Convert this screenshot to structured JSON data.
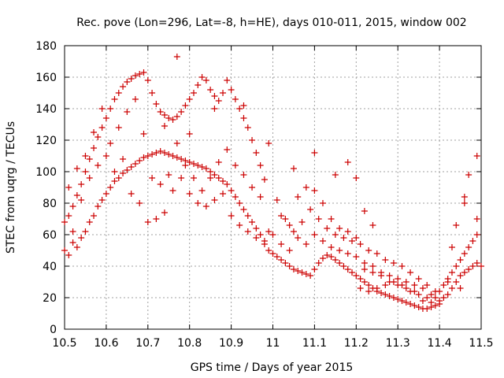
{
  "chart_data": {
    "type": "scatter",
    "title": "Rec. pove (Lon=296, Lat=-8, h=HE), days 010-011, 2015, window 002",
    "xlabel": "GPS time / Days of year 2015",
    "ylabel": "STEC from uqrg / TECUs",
    "xlim": [
      10.5,
      11.5
    ],
    "ylim": [
      0,
      180
    ],
    "xticks": [
      "10.5",
      "10.6",
      "10.7",
      "10.8",
      "10.9",
      "11",
      "11.1",
      "11.2",
      "11.3",
      "11.4",
      "11.5"
    ],
    "yticks": [
      "0",
      "20",
      "40",
      "60",
      "80",
      "100",
      "120",
      "140",
      "160",
      "180"
    ],
    "grid": true,
    "marker": "+",
    "color": "#cc0000",
    "series": [
      {
        "points": [
          [
            10.5,
            50
          ],
          [
            10.51,
            47
          ],
          [
            10.52,
            55
          ],
          [
            10.53,
            52
          ],
          [
            10.54,
            58
          ],
          [
            10.55,
            62
          ],
          [
            10.56,
            68
          ],
          [
            10.57,
            72
          ],
          [
            10.58,
            78
          ],
          [
            10.59,
            82
          ],
          [
            10.6,
            86
          ],
          [
            10.61,
            90
          ],
          [
            10.62,
            94
          ],
          [
            10.63,
            96
          ],
          [
            10.64,
            99
          ],
          [
            10.65,
            101
          ],
          [
            10.66,
            103
          ],
          [
            10.67,
            105
          ],
          [
            10.68,
            107
          ],
          [
            10.69,
            109
          ],
          [
            10.7,
            110
          ],
          [
            10.71,
            111
          ],
          [
            10.72,
            112
          ],
          [
            10.73,
            113
          ],
          [
            10.74,
            112
          ],
          [
            10.75,
            111
          ],
          [
            10.76,
            110
          ],
          [
            10.77,
            109
          ],
          [
            10.78,
            108
          ],
          [
            10.79,
            107
          ],
          [
            10.8,
            106
          ],
          [
            10.81,
            105
          ],
          [
            10.82,
            104
          ],
          [
            10.83,
            103
          ],
          [
            10.84,
            102
          ],
          [
            10.85,
            100
          ],
          [
            10.86,
            98
          ],
          [
            10.87,
            96
          ],
          [
            10.88,
            94
          ],
          [
            10.89,
            92
          ],
          [
            10.9,
            88
          ],
          [
            10.91,
            84
          ],
          [
            10.92,
            80
          ],
          [
            10.93,
            76
          ],
          [
            10.94,
            72
          ],
          [
            10.95,
            68
          ],
          [
            10.96,
            64
          ],
          [
            10.97,
            60
          ],
          [
            10.98,
            56
          ],
          [
            10.99,
            50
          ],
          [
            10.5,
            68
          ],
          [
            10.51,
            72
          ],
          [
            10.52,
            78
          ],
          [
            10.53,
            85
          ],
          [
            10.54,
            92
          ],
          [
            10.55,
            100
          ],
          [
            10.56,
            108
          ],
          [
            10.57,
            115
          ],
          [
            10.58,
            122
          ],
          [
            10.59,
            128
          ],
          [
            10.6,
            134
          ],
          [
            10.61,
            140
          ],
          [
            10.62,
            146
          ],
          [
            10.63,
            150
          ],
          [
            10.64,
            154
          ],
          [
            10.65,
            157
          ],
          [
            10.66,
            159
          ],
          [
            10.67,
            161
          ],
          [
            10.68,
            162
          ],
          [
            10.69,
            163
          ],
          [
            10.7,
            158
          ],
          [
            10.71,
            150
          ],
          [
            10.72,
            143
          ],
          [
            10.73,
            138
          ],
          [
            10.74,
            136
          ],
          [
            10.75,
            134
          ],
          [
            10.76,
            133
          ],
          [
            10.77,
            135
          ],
          [
            10.78,
            138
          ],
          [
            10.79,
            142
          ],
          [
            10.8,
            146
          ],
          [
            10.81,
            150
          ],
          [
            10.82,
            155
          ],
          [
            10.83,
            160
          ],
          [
            10.84,
            158
          ],
          [
            10.85,
            152
          ],
          [
            10.86,
            148
          ],
          [
            10.87,
            145
          ],
          [
            10.88,
            150
          ],
          [
            10.89,
            158
          ],
          [
            10.9,
            152
          ],
          [
            10.91,
            146
          ],
          [
            10.92,
            140
          ],
          [
            10.93,
            134
          ],
          [
            10.94,
            128
          ],
          [
            10.95,
            120
          ],
          [
            10.96,
            112
          ],
          [
            10.97,
            104
          ],
          [
            10.98,
            95
          ],
          [
            10.99,
            118
          ],
          [
            10.51,
            90
          ],
          [
            10.53,
            102
          ],
          [
            10.55,
            110
          ],
          [
            10.57,
            125
          ],
          [
            10.59,
            140
          ],
          [
            10.61,
            118
          ],
          [
            10.63,
            128
          ],
          [
            10.65,
            138
          ],
          [
            10.67,
            146
          ],
          [
            10.69,
            124
          ],
          [
            10.71,
            96
          ],
          [
            10.73,
            92
          ],
          [
            10.75,
            98
          ],
          [
            10.77,
            118
          ],
          [
            10.79,
            104
          ],
          [
            10.81,
            96
          ],
          [
            10.83,
            88
          ],
          [
            10.85,
            96
          ],
          [
            10.87,
            106
          ],
          [
            10.89,
            114
          ],
          [
            10.91,
            104
          ],
          [
            10.93,
            98
          ],
          [
            10.95,
            90
          ],
          [
            10.97,
            84
          ],
          [
            10.99,
            62
          ],
          [
            10.52,
            62
          ],
          [
            10.54,
            82
          ],
          [
            10.56,
            96
          ],
          [
            10.58,
            104
          ],
          [
            10.6,
            110
          ],
          [
            10.62,
            100
          ],
          [
            10.64,
            108
          ],
          [
            10.66,
            86
          ],
          [
            10.68,
            80
          ],
          [
            10.7,
            68
          ],
          [
            10.72,
            70
          ],
          [
            10.74,
            74
          ],
          [
            10.76,
            88
          ],
          [
            10.78,
            96
          ],
          [
            10.8,
            86
          ],
          [
            10.82,
            80
          ],
          [
            10.84,
            78
          ],
          [
            10.86,
            82
          ],
          [
            10.88,
            86
          ],
          [
            10.9,
            72
          ],
          [
            10.92,
            66
          ],
          [
            10.94,
            62
          ],
          [
            10.96,
            58
          ],
          [
            10.98,
            54
          ],
          [
            10.77,
            173
          ],
          [
            10.74,
            129
          ],
          [
            10.8,
            124
          ],
          [
            10.86,
            140
          ],
          [
            10.93,
            142
          ],
          [
            11.0,
            48
          ],
          [
            11.01,
            46
          ],
          [
            11.02,
            44
          ],
          [
            11.03,
            42
          ],
          [
            11.04,
            40
          ],
          [
            11.05,
            38
          ],
          [
            11.06,
            37
          ],
          [
            11.07,
            36
          ],
          [
            11.08,
            35
          ],
          [
            11.09,
            34
          ],
          [
            11.1,
            38
          ],
          [
            11.11,
            42
          ],
          [
            11.12,
            45
          ],
          [
            11.13,
            47
          ],
          [
            11.14,
            46
          ],
          [
            11.15,
            44
          ],
          [
            11.16,
            42
          ],
          [
            11.17,
            40
          ],
          [
            11.18,
            38
          ],
          [
            11.19,
            36
          ],
          [
            11.2,
            34
          ],
          [
            11.21,
            32
          ],
          [
            11.22,
            30
          ],
          [
            11.23,
            28
          ],
          [
            11.24,
            26
          ],
          [
            11.25,
            24
          ],
          [
            11.26,
            23
          ],
          [
            11.27,
            22
          ],
          [
            11.28,
            21
          ],
          [
            11.29,
            20
          ],
          [
            11.3,
            19
          ],
          [
            11.31,
            18
          ],
          [
            11.32,
            17
          ],
          [
            11.33,
            16
          ],
          [
            11.34,
            15
          ],
          [
            11.35,
            14
          ],
          [
            11.36,
            13
          ],
          [
            11.37,
            13
          ],
          [
            11.38,
            14
          ],
          [
            11.39,
            15
          ],
          [
            11.0,
            60
          ],
          [
            11.02,
            72
          ],
          [
            11.04,
            66
          ],
          [
            11.06,
            58
          ],
          [
            11.08,
            54
          ],
          [
            11.1,
            60
          ],
          [
            11.12,
            56
          ],
          [
            11.14,
            52
          ],
          [
            11.16,
            50
          ],
          [
            11.18,
            48
          ],
          [
            11.2,
            46
          ],
          [
            11.22,
            42
          ],
          [
            11.24,
            40
          ],
          [
            11.26,
            36
          ],
          [
            11.28,
            34
          ],
          [
            11.3,
            32
          ],
          [
            11.32,
            30
          ],
          [
            11.34,
            28
          ],
          [
            11.36,
            26
          ],
          [
            11.38,
            22
          ],
          [
            11.01,
            82
          ],
          [
            11.03,
            70
          ],
          [
            11.05,
            62
          ],
          [
            11.07,
            68
          ],
          [
            11.09,
            76
          ],
          [
            11.11,
            70
          ],
          [
            11.13,
            64
          ],
          [
            11.15,
            60
          ],
          [
            11.17,
            58
          ],
          [
            11.19,
            56
          ],
          [
            11.21,
            54
          ],
          [
            11.23,
            50
          ],
          [
            11.25,
            48
          ],
          [
            11.27,
            44
          ],
          [
            11.29,
            42
          ],
          [
            11.31,
            40
          ],
          [
            11.33,
            36
          ],
          [
            11.35,
            32
          ],
          [
            11.37,
            28
          ],
          [
            11.39,
            24
          ],
          [
            11.02,
            54
          ],
          [
            11.04,
            50
          ],
          [
            11.06,
            84
          ],
          [
            11.08,
            90
          ],
          [
            11.1,
            88
          ],
          [
            11.12,
            80
          ],
          [
            11.14,
            70
          ],
          [
            11.16,
            64
          ],
          [
            11.18,
            62
          ],
          [
            11.2,
            58
          ],
          [
            11.05,
            102
          ],
          [
            11.1,
            112
          ],
          [
            11.15,
            98
          ],
          [
            11.18,
            106
          ],
          [
            11.2,
            96
          ],
          [
            11.22,
            75
          ],
          [
            11.24,
            66
          ],
          [
            11.21,
            26
          ],
          [
            11.23,
            24
          ],
          [
            11.25,
            26
          ],
          [
            11.27,
            28
          ],
          [
            11.29,
            30
          ],
          [
            11.31,
            28
          ],
          [
            11.33,
            24
          ],
          [
            11.35,
            22
          ],
          [
            11.37,
            20
          ],
          [
            11.39,
            20
          ],
          [
            11.22,
            38
          ],
          [
            11.24,
            36
          ],
          [
            11.26,
            34
          ],
          [
            11.28,
            30
          ],
          [
            11.3,
            28
          ],
          [
            11.32,
            26
          ],
          [
            11.34,
            24
          ],
          [
            11.36,
            18
          ],
          [
            11.38,
            17
          ],
          [
            11.4,
            16
          ],
          [
            11.4,
            24
          ],
          [
            11.41,
            28
          ],
          [
            11.42,
            32
          ],
          [
            11.43,
            36
          ],
          [
            11.44,
            40
          ],
          [
            11.45,
            44
          ],
          [
            11.46,
            48
          ],
          [
            11.47,
            52
          ],
          [
            11.48,
            56
          ],
          [
            11.49,
            60
          ],
          [
            11.4,
            18
          ],
          [
            11.41,
            20
          ],
          [
            11.42,
            22
          ],
          [
            11.43,
            26
          ],
          [
            11.44,
            30
          ],
          [
            11.45,
            34
          ],
          [
            11.46,
            36
          ],
          [
            11.47,
            38
          ],
          [
            11.48,
            40
          ],
          [
            11.49,
            42
          ],
          [
            11.43,
            52
          ],
          [
            11.44,
            66
          ],
          [
            11.46,
            80
          ],
          [
            11.46,
            84
          ],
          [
            11.47,
            98
          ],
          [
            11.49,
            110
          ],
          [
            11.49,
            70
          ],
          [
            11.5,
            40
          ],
          [
            11.45,
            26
          ],
          [
            11.42,
            30
          ]
        ]
      }
    ]
  }
}
